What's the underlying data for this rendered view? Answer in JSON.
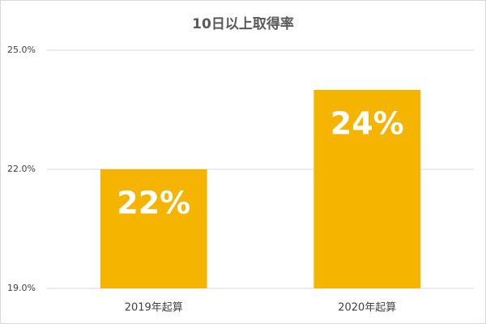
{
  "chart_data": {
    "type": "bar",
    "title": "10日以上取得率",
    "categories": [
      "2019年起算",
      "2020年起算"
    ],
    "values": [
      22,
      24
    ],
    "value_labels": [
      "22%",
      "24%"
    ],
    "color": "#f5b400",
    "ylim": [
      19,
      25
    ],
    "yticks": [
      {
        "value": 19,
        "label": "19.0%"
      },
      {
        "value": 22,
        "label": "22.0%"
      },
      {
        "value": 25,
        "label": "25.0%"
      }
    ],
    "grid": true
  }
}
